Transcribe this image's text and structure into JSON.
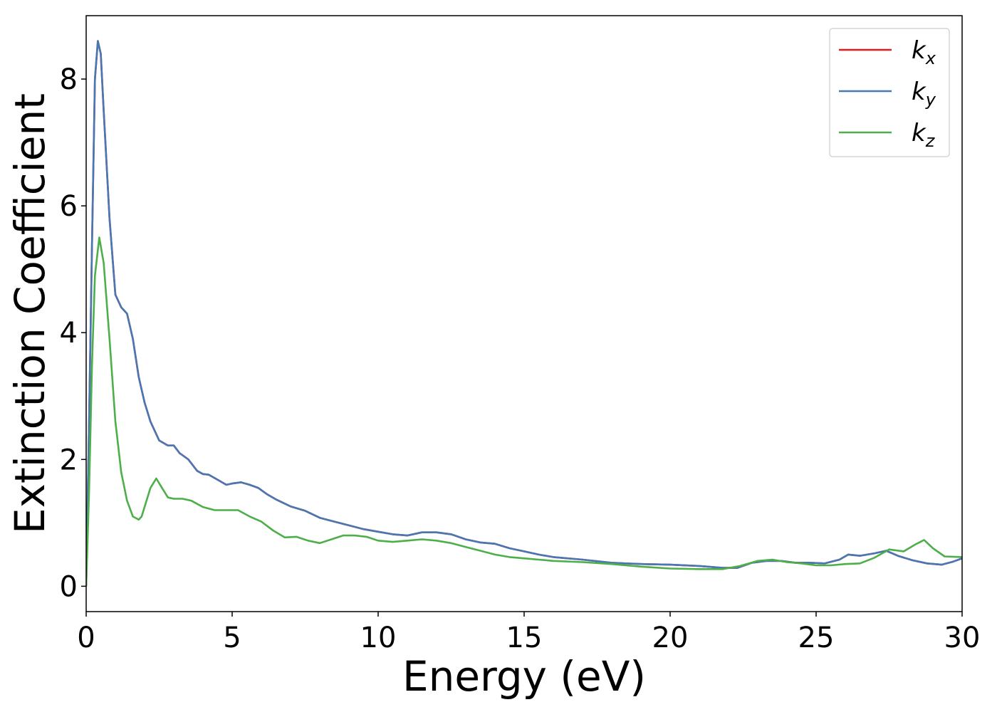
{
  "chart_data": {
    "type": "line",
    "title": "",
    "xlabel": "Energy (eV)",
    "ylabel": "Extinction Coefficient",
    "xlim": [
      0,
      30
    ],
    "ylim": [
      -0.4,
      9.0
    ],
    "xticks": [
      0,
      5,
      10,
      15,
      20,
      25,
      30
    ],
    "yticks": [
      0,
      2,
      4,
      6,
      8
    ],
    "grid": false,
    "legend_position": "top-right",
    "series": [
      {
        "name": "k",
        "subscript": "x",
        "color": "#e41a1c",
        "x": [
          0,
          0.1,
          0.2,
          0.3,
          0.4,
          0.5,
          0.6,
          0.8,
          1.0,
          1.2,
          1.4,
          1.6,
          1.8,
          2.0,
          2.2,
          2.5,
          2.8,
          3.0,
          3.2,
          3.5,
          3.8,
          4.0,
          4.2,
          4.5,
          4.8,
          5.0,
          5.3,
          5.6,
          5.9,
          6.2,
          6.5,
          7.0,
          7.5,
          8.0,
          8.5,
          9.0,
          9.5,
          10.0,
          10.5,
          11.0,
          11.5,
          12.0,
          12.5,
          13.0,
          13.5,
          14.0,
          14.5,
          15.0,
          15.5,
          16.0,
          17.0,
          18.0,
          19.0,
          20.0,
          21.0,
          21.8,
          22.3,
          22.8,
          23.3,
          23.8,
          24.3,
          24.8,
          25.3,
          25.8,
          26.1,
          26.5,
          27.0,
          27.4,
          27.8,
          28.3,
          28.8,
          29.3,
          29.7,
          30.0
        ],
        "values": [
          0,
          2.6,
          5.4,
          8.0,
          8.6,
          8.4,
          7.5,
          5.8,
          4.6,
          4.4,
          4.3,
          3.9,
          3.3,
          2.9,
          2.6,
          2.3,
          2.22,
          2.22,
          2.1,
          2.0,
          1.82,
          1.77,
          1.76,
          1.68,
          1.6,
          1.62,
          1.64,
          1.6,
          1.55,
          1.45,
          1.37,
          1.26,
          1.19,
          1.08,
          1.02,
          0.96,
          0.9,
          0.86,
          0.82,
          0.8,
          0.85,
          0.85,
          0.82,
          0.74,
          0.69,
          0.67,
          0.6,
          0.55,
          0.5,
          0.46,
          0.42,
          0.37,
          0.35,
          0.34,
          0.32,
          0.29,
          0.29,
          0.37,
          0.4,
          0.4,
          0.37,
          0.37,
          0.36,
          0.42,
          0.5,
          0.48,
          0.52,
          0.56,
          0.48,
          0.41,
          0.36,
          0.34,
          0.39,
          0.44
        ]
      },
      {
        "name": "k",
        "subscript": "y",
        "color": "#4878b3",
        "x": [
          0,
          0.1,
          0.2,
          0.3,
          0.4,
          0.5,
          0.6,
          0.8,
          1.0,
          1.2,
          1.4,
          1.6,
          1.8,
          2.0,
          2.2,
          2.5,
          2.8,
          3.0,
          3.2,
          3.5,
          3.8,
          4.0,
          4.2,
          4.5,
          4.8,
          5.0,
          5.3,
          5.6,
          5.9,
          6.2,
          6.5,
          7.0,
          7.5,
          8.0,
          8.5,
          9.0,
          9.5,
          10.0,
          10.5,
          11.0,
          11.5,
          12.0,
          12.5,
          13.0,
          13.5,
          14.0,
          14.5,
          15.0,
          15.5,
          16.0,
          17.0,
          18.0,
          19.0,
          20.0,
          21.0,
          21.8,
          22.3,
          22.8,
          23.3,
          23.8,
          24.3,
          24.8,
          25.3,
          25.8,
          26.1,
          26.5,
          27.0,
          27.4,
          27.8,
          28.3,
          28.8,
          29.3,
          29.7,
          30.0
        ],
        "values": [
          0,
          2.6,
          5.4,
          8.0,
          8.6,
          8.4,
          7.5,
          5.8,
          4.6,
          4.4,
          4.3,
          3.9,
          3.3,
          2.9,
          2.6,
          2.3,
          2.22,
          2.22,
          2.1,
          2.0,
          1.82,
          1.77,
          1.76,
          1.68,
          1.6,
          1.62,
          1.64,
          1.6,
          1.55,
          1.45,
          1.37,
          1.26,
          1.19,
          1.08,
          1.02,
          0.96,
          0.9,
          0.86,
          0.82,
          0.8,
          0.85,
          0.85,
          0.82,
          0.74,
          0.69,
          0.67,
          0.6,
          0.55,
          0.5,
          0.46,
          0.42,
          0.37,
          0.35,
          0.34,
          0.32,
          0.29,
          0.29,
          0.37,
          0.4,
          0.4,
          0.37,
          0.37,
          0.36,
          0.42,
          0.5,
          0.48,
          0.52,
          0.56,
          0.48,
          0.41,
          0.36,
          0.34,
          0.39,
          0.44
        ]
      },
      {
        "name": "k",
        "subscript": "z",
        "color": "#4daf4a",
        "x": [
          0,
          0.1,
          0.2,
          0.3,
          0.45,
          0.6,
          0.8,
          1.0,
          1.2,
          1.4,
          1.6,
          1.8,
          1.9,
          2.0,
          2.2,
          2.4,
          2.6,
          2.8,
          3.0,
          3.3,
          3.6,
          4.0,
          4.4,
          4.8,
          5.2,
          5.6,
          6.0,
          6.4,
          6.8,
          7.2,
          7.6,
          8.0,
          8.4,
          8.8,
          9.2,
          9.6,
          10.0,
          10.5,
          11.0,
          11.5,
          12.0,
          12.5,
          13.0,
          13.5,
          14.0,
          14.5,
          15.0,
          15.5,
          16.0,
          17.0,
          18.0,
          19.0,
          20.0,
          21.0,
          21.8,
          22.4,
          23.0,
          23.5,
          24.0,
          24.5,
          25.0,
          25.5,
          26.0,
          26.5,
          27.0,
          27.5,
          28.0,
          28.4,
          28.7,
          29.0,
          29.4,
          30.0
        ],
        "values": [
          0,
          1.5,
          3.5,
          4.9,
          5.5,
          5.1,
          3.9,
          2.6,
          1.8,
          1.35,
          1.1,
          1.05,
          1.1,
          1.25,
          1.55,
          1.7,
          1.55,
          1.4,
          1.38,
          1.38,
          1.35,
          1.25,
          1.2,
          1.2,
          1.2,
          1.1,
          1.02,
          0.88,
          0.77,
          0.78,
          0.72,
          0.68,
          0.74,
          0.8,
          0.8,
          0.78,
          0.72,
          0.7,
          0.72,
          0.74,
          0.72,
          0.68,
          0.62,
          0.56,
          0.5,
          0.46,
          0.44,
          0.42,
          0.4,
          0.38,
          0.35,
          0.31,
          0.28,
          0.27,
          0.27,
          0.32,
          0.4,
          0.42,
          0.38,
          0.36,
          0.33,
          0.33,
          0.35,
          0.36,
          0.45,
          0.58,
          0.55,
          0.66,
          0.73,
          0.6,
          0.47,
          0.46
        ]
      }
    ]
  }
}
